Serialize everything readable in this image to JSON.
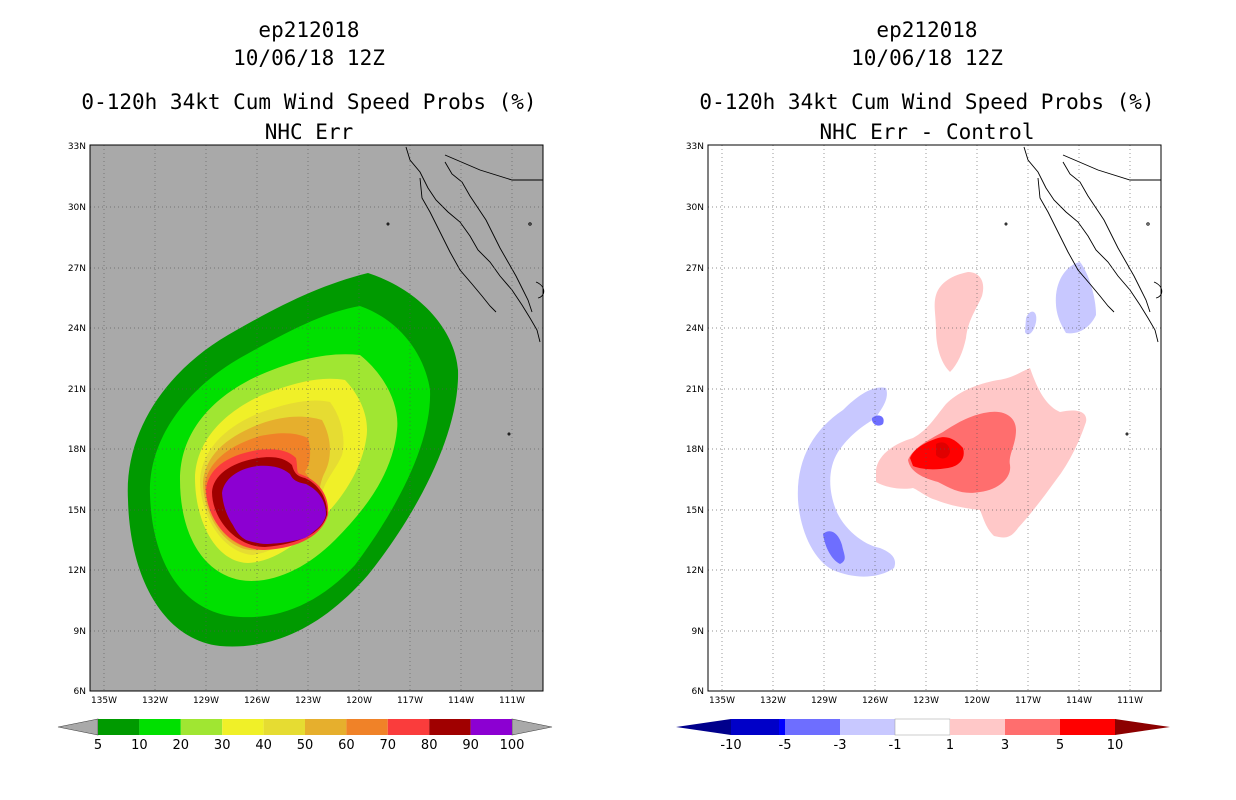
{
  "left": {
    "storm_id": "ep212018",
    "datetime": "10/06/18 12Z",
    "title": "0-120h 34kt Cum Wind Speed Probs (%)",
    "subtitle": "NHC Err",
    "lat_ticks": [
      "33N",
      "30N",
      "27N",
      "24N",
      "21N",
      "18N",
      "15N",
      "12N",
      "9N",
      "6N"
    ],
    "lon_ticks": [
      "135W",
      "132W",
      "129W",
      "126W",
      "123W",
      "120W",
      "117W",
      "114W",
      "111W"
    ],
    "colorbar_labels": [
      "5",
      "10",
      "20",
      "30",
      "40",
      "50",
      "60",
      "70",
      "80",
      "90",
      "100"
    ],
    "colorbar_colors": [
      "#009a00",
      "#00e000",
      "#a0e632",
      "#f0f028",
      "#e6dc32",
      "#e6af2d",
      "#f08228",
      "#fa3c3c",
      "#a00000",
      "#8c00d2"
    ],
    "background_color": "#a9a9a9"
  },
  "right": {
    "storm_id": "ep212018",
    "datetime": "10/06/18 12Z",
    "title": "0-120h 34kt Cum Wind Speed Probs (%)",
    "subtitle": "NHC Err - Control",
    "lat_ticks": [
      "33N",
      "30N",
      "27N",
      "24N",
      "21N",
      "18N",
      "15N",
      "12N",
      "9N",
      "6N"
    ],
    "lon_ticks": [
      "135W",
      "132W",
      "129W",
      "126W",
      "123W",
      "120W",
      "117W",
      "114W",
      "111W"
    ],
    "colorbar_labels": [
      "-10",
      "-5",
      "-3",
      "-1",
      "1",
      "3",
      "5",
      "10"
    ],
    "colorbar_colors": [
      "#0000c8",
      "#0000ff",
      "#6e6eff",
      "#c8c8ff",
      "#ffffff",
      "#ffc8c8",
      "#ff6e6e",
      "#ff0000"
    ],
    "colorbar_ends": [
      "#00008c",
      "#8c0000"
    ]
  }
}
